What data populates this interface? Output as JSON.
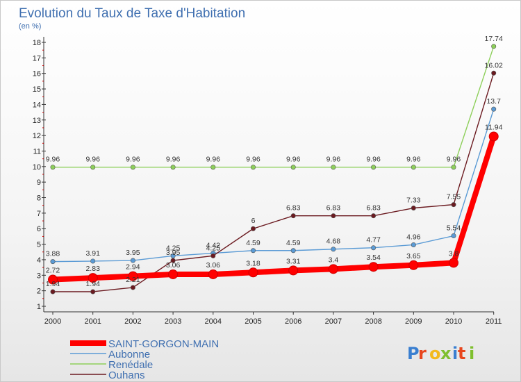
{
  "chart_data": {
    "type": "line",
    "title": "Evolution du Taux de Taxe d'Habitation",
    "subtitle": "(en %)",
    "x": [
      "2000",
      "2001",
      "2002",
      "2003",
      "2004",
      "2005",
      "2006",
      "2007",
      "2008",
      "2009",
      "2010",
      "2011"
    ],
    "ylim": [
      1,
      18
    ],
    "yticks": [
      1,
      2,
      3,
      4,
      5,
      6,
      7,
      8,
      9,
      10,
      11,
      12,
      13,
      14,
      15,
      16,
      17,
      18
    ],
    "grid": false,
    "legend_position": "bottom-left",
    "series": [
      {
        "name": "Renédale",
        "color": "#8dcf5a",
        "values": [
          9.96,
          9.96,
          9.96,
          9.96,
          9.96,
          9.96,
          9.96,
          9.96,
          9.96,
          9.96,
          9.96,
          17.74
        ],
        "labels": [
          "9.96",
          "9.96",
          "9.96",
          "9.96",
          "9.96",
          "9.96",
          "9.96",
          "9.96",
          "9.96",
          "9.96",
          "9.96",
          "17.74"
        ]
      },
      {
        "name": "Aubonne",
        "color": "#5b9bd5",
        "values": [
          3.88,
          3.91,
          3.95,
          4.25,
          4.42,
          4.59,
          4.59,
          4.68,
          4.77,
          4.96,
          5.54,
          13.7
        ],
        "labels": [
          "3.88",
          "3.91",
          "3.95",
          "4.25",
          "4.42",
          "4.59",
          "4.59",
          "4.68",
          "4.77",
          "4.96",
          "5.54",
          "13.7"
        ]
      },
      {
        "name": "Ouhans",
        "color": "#6b1a20",
        "values": [
          1.94,
          1.94,
          2.21,
          3.95,
          4.25,
          6,
          6.83,
          6.83,
          6.83,
          7.33,
          7.55,
          16.02
        ],
        "labels": [
          "1.94",
          "1.94",
          "2.21",
          "3.95",
          "4.25",
          "6",
          "6.83",
          "6.83",
          "6.83",
          "7.33",
          "7.55",
          "16.02"
        ]
      },
      {
        "name": "SAINT-GORGON-MAIN",
        "color": "#ff0000",
        "values": [
          2.72,
          2.83,
          2.94,
          3.06,
          3.06,
          3.18,
          3.31,
          3.4,
          3.54,
          3.65,
          3.8,
          11.94
        ],
        "labels": [
          "2.72",
          "2.83",
          "2.94",
          "3.06",
          "3.06",
          "3.18",
          "3.31",
          "3.4",
          "3.54",
          "3.65",
          "3.8",
          "11.94"
        ]
      }
    ],
    "legend_order": [
      "SAINT-GORGON-MAIN",
      "Aubonne",
      "Renédale",
      "Ouhans"
    ]
  },
  "brand": {
    "text": "Proxiti"
  }
}
